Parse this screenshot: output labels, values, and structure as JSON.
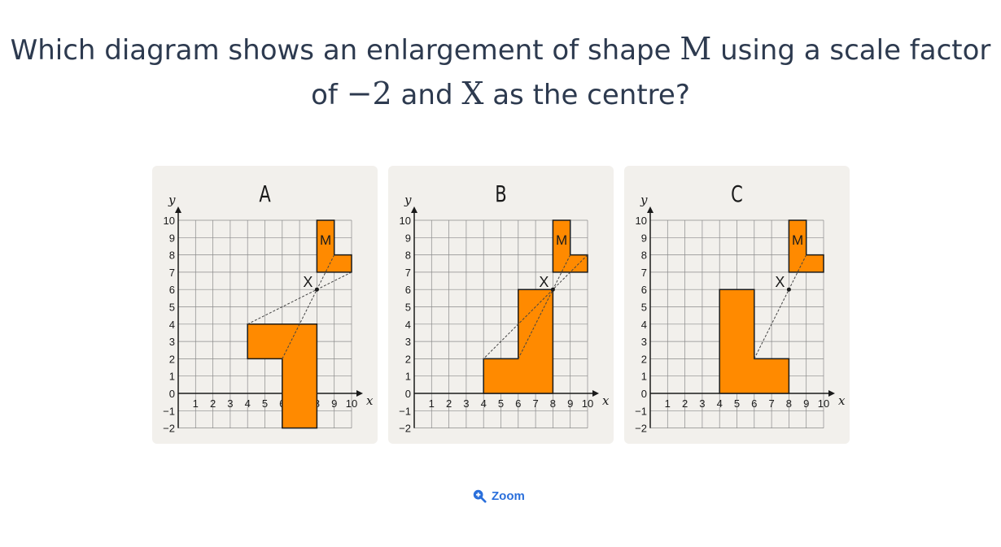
{
  "question": {
    "part1": "Which diagram shows an enlargement of shape ",
    "shape": "M",
    "part2": " using a scale factor",
    "part3": "of ",
    "factor": "−2",
    "part4": " and ",
    "centre": "X",
    "part5": " as the centre?"
  },
  "colors": {
    "shape_fill": "#ff8a00",
    "shape_stroke": "#1a1a1a",
    "grid": "#8a8a8a",
    "panel_bg": "#f2f0ec",
    "link": "#2a6fdb"
  },
  "axis": {
    "x_label": "x",
    "y_label": "y",
    "x_ticks": [
      "1",
      "2",
      "3",
      "4",
      "5",
      "6",
      "7",
      "8",
      "9",
      "10"
    ],
    "y_ticks": [
      "10",
      "9",
      "8",
      "7",
      "6",
      "5",
      "4",
      "3",
      "2",
      "1",
      "0",
      "−1",
      "−2"
    ]
  },
  "diagrams": [
    {
      "label": "A",
      "shape_m_label": "M",
      "centre_label": "X",
      "centre": [
        8,
        6
      ],
      "shape_m": [
        [
          8,
          7
        ],
        [
          8,
          10
        ],
        [
          9,
          10
        ],
        [
          9,
          8
        ],
        [
          10,
          8
        ],
        [
          10,
          7
        ]
      ],
      "image": [
        [
          4,
          2
        ],
        [
          4,
          4
        ],
        [
          8,
          4
        ],
        [
          8,
          -2
        ],
        [
          6,
          -2
        ],
        [
          6,
          2
        ]
      ],
      "rays": [
        [
          [
            10,
            7
          ],
          [
            4,
            4
          ]
        ],
        [
          [
            9,
            8
          ],
          [
            6,
            2
          ]
        ]
      ]
    },
    {
      "label": "B",
      "shape_m_label": "M",
      "centre_label": "X",
      "centre": [
        8,
        6
      ],
      "shape_m": [
        [
          8,
          7
        ],
        [
          8,
          10
        ],
        [
          9,
          10
        ],
        [
          9,
          8
        ],
        [
          10,
          8
        ],
        [
          10,
          7
        ]
      ],
      "image": [
        [
          4,
          0
        ],
        [
          4,
          2
        ],
        [
          6,
          2
        ],
        [
          6,
          6
        ],
        [
          8,
          6
        ],
        [
          8,
          0
        ]
      ],
      "rays": [
        [
          [
            10,
            8
          ],
          [
            4,
            2
          ]
        ],
        [
          [
            9,
            8
          ],
          [
            6,
            2
          ]
        ]
      ]
    },
    {
      "label": "C",
      "shape_m_label": "M",
      "centre_label": "X",
      "centre": [
        8,
        6
      ],
      "shape_m": [
        [
          8,
          7
        ],
        [
          8,
          10
        ],
        [
          9,
          10
        ],
        [
          9,
          8
        ],
        [
          10,
          8
        ],
        [
          10,
          7
        ]
      ],
      "image": [
        [
          4,
          0
        ],
        [
          4,
          6
        ],
        [
          6,
          6
        ],
        [
          6,
          2
        ],
        [
          8,
          2
        ],
        [
          8,
          0
        ]
      ],
      "rays": [
        [
          [
            9,
            8
          ],
          [
            6,
            2
          ]
        ]
      ]
    }
  ],
  "zoom": {
    "label": "Zoom",
    "icon": "zoom-in-icon"
  }
}
